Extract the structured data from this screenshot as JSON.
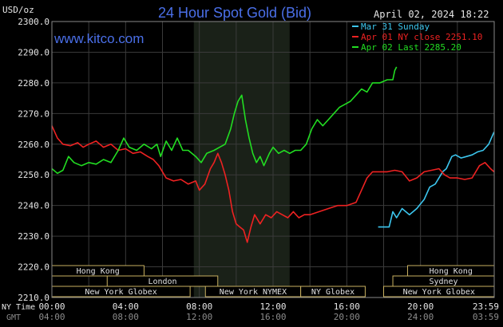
{
  "header": {
    "title": "24 Hour Spot Gold (Bid)",
    "y_unit": "USD/oz",
    "date": "April 02, 2024 18:22",
    "website": "www.kitco.com"
  },
  "legend": [
    {
      "label": "Mar 31 Sunday",
      "color": "#3cc6ee"
    },
    {
      "label": "Apr 01 NY close 2251.10",
      "color": "#ee2222"
    },
    {
      "label": "Apr 02 Last 2285.20",
      "color": "#22dd22"
    }
  ],
  "footer": {
    "ny_label": "NY Time",
    "gmt_label": "GMT"
  },
  "markets": {
    "left": [
      {
        "name": "Hong Kong",
        "row": 1,
        "start_h": 0,
        "end_h": 5.0
      },
      {
        "name": "London",
        "row": 2,
        "start_h": 3.0,
        "end_h": 9.0
      },
      {
        "name": "New York Globex",
        "row": 3,
        "start_h": 0,
        "end_h": 7.5
      }
    ],
    "bottom": [
      {
        "name": "New York NYMEX",
        "start_h": 8.33,
        "end_h": 13.5
      },
      {
        "name": "NY Globex",
        "start_h": 13.5,
        "end_h": 17.0
      }
    ],
    "right": [
      {
        "name": "Hong Kong",
        "row": 1,
        "start_h": 19.3,
        "end_h": 24
      },
      {
        "name": "Sydney",
        "row": 2,
        "start_h": 18.5,
        "end_h": 24
      },
      {
        "name": "New York Globex",
        "row": 3,
        "start_h": 18.0,
        "end_h": 24
      }
    ]
  },
  "colors": {
    "background": "#000000",
    "plot_background": "#000000",
    "grid": "#3a3a3a",
    "nymex_shade": "#1a2118",
    "title": "#4a6fe8",
    "text": "#e6e6e6",
    "market_fill": "#000000",
    "market_border": "#c8b060",
    "market_text": "#e0e0e0",
    "gmt_text": "#8c8c8c"
  },
  "chart_data": {
    "type": "line",
    "ylim": [
      2210,
      2300
    ],
    "yticks": [
      "2300.0",
      "2290.0",
      "2280.0",
      "2270.0",
      "2260.0",
      "2250.0",
      "2240.0",
      "2230.0",
      "2220.0",
      "2210.0"
    ],
    "xlim_hours": [
      0,
      24
    ],
    "xticks_ny": [
      "00:00",
      "04:00",
      "08:00",
      "12:00",
      "16:00",
      "20:00",
      "23:59"
    ],
    "xticks_gmt": [
      "04:00",
      "08:00",
      "12:00",
      "16:00",
      "20:00",
      "24:00",
      "03:59"
    ],
    "shaded_region_hours": [
      7.7,
      12.9
    ],
    "series": [
      {
        "name": "Mar 31 Sunday",
        "color": "#3cc6ee",
        "points": [
          [
            17.7,
            2233.0
          ],
          [
            18.3,
            2233.0
          ],
          [
            18.5,
            2238
          ],
          [
            18.7,
            2236
          ],
          [
            19.0,
            2239
          ],
          [
            19.4,
            2237
          ],
          [
            19.8,
            2239
          ],
          [
            20.2,
            2242
          ],
          [
            20.5,
            2246
          ],
          [
            20.8,
            2247
          ],
          [
            21.0,
            2249
          ],
          [
            21.2,
            2251
          ],
          [
            21.4,
            2252
          ],
          [
            21.7,
            2256
          ],
          [
            21.9,
            2256.5
          ],
          [
            22.2,
            2255.5
          ],
          [
            22.5,
            2256
          ],
          [
            22.8,
            2256.5
          ],
          [
            23.1,
            2257.5
          ],
          [
            23.4,
            2258
          ],
          [
            23.7,
            2260
          ],
          [
            23.99,
            2264
          ]
        ]
      },
      {
        "name": "Apr 01 NY close 2251.10",
        "color": "#ee2222",
        "points": [
          [
            0,
            2266
          ],
          [
            0.3,
            2262
          ],
          [
            0.6,
            2260
          ],
          [
            1.0,
            2259.5
          ],
          [
            1.4,
            2260.5
          ],
          [
            1.7,
            2259
          ],
          [
            2.0,
            2260
          ],
          [
            2.4,
            2261
          ],
          [
            2.8,
            2259
          ],
          [
            3.2,
            2260
          ],
          [
            3.6,
            2258
          ],
          [
            4.0,
            2258.5
          ],
          [
            4.4,
            2257
          ],
          [
            4.8,
            2257.5
          ],
          [
            5.2,
            2256
          ],
          [
            5.5,
            2255
          ],
          [
            5.8,
            2253
          ],
          [
            6.2,
            2249
          ],
          [
            6.6,
            2248
          ],
          [
            7.0,
            2248.5
          ],
          [
            7.4,
            2247
          ],
          [
            7.8,
            2248
          ],
          [
            8.0,
            2245
          ],
          [
            8.3,
            2247
          ],
          [
            8.6,
            2252
          ],
          [
            8.8,
            2254
          ],
          [
            9.0,
            2257
          ],
          [
            9.2,
            2254
          ],
          [
            9.4,
            2250
          ],
          [
            9.6,
            2245
          ],
          [
            9.8,
            2238
          ],
          [
            10.0,
            2234
          ],
          [
            10.2,
            2233
          ],
          [
            10.4,
            2232
          ],
          [
            10.6,
            2228
          ],
          [
            10.8,
            2233
          ],
          [
            11.0,
            2237
          ],
          [
            11.3,
            2234
          ],
          [
            11.6,
            2237
          ],
          [
            11.9,
            2236
          ],
          [
            12.2,
            2238
          ],
          [
            12.5,
            2237
          ],
          [
            12.8,
            2236
          ],
          [
            13.1,
            2238
          ],
          [
            13.4,
            2236
          ],
          [
            13.7,
            2237
          ],
          [
            14.0,
            2237
          ],
          [
            14.5,
            2238
          ],
          [
            15.0,
            2239
          ],
          [
            15.5,
            2240
          ],
          [
            16.0,
            2240
          ],
          [
            16.5,
            2241
          ],
          [
            16.8,
            2245
          ],
          [
            17.1,
            2249
          ],
          [
            17.4,
            2251
          ],
          [
            17.8,
            2251
          ],
          [
            18.2,
            2251
          ],
          [
            18.6,
            2251.5
          ],
          [
            19.0,
            2251
          ],
          [
            19.4,
            2248
          ],
          [
            19.8,
            2249
          ],
          [
            20.2,
            2251
          ],
          [
            20.6,
            2251.5
          ],
          [
            21.0,
            2252
          ],
          [
            21.3,
            2250
          ],
          [
            21.6,
            2249
          ],
          [
            22.0,
            2249
          ],
          [
            22.4,
            2248.5
          ],
          [
            22.8,
            2249
          ],
          [
            23.2,
            2253
          ],
          [
            23.5,
            2254
          ],
          [
            23.8,
            2252
          ],
          [
            23.99,
            2251
          ]
        ]
      },
      {
        "name": "Apr 02 Last 2285.20",
        "color": "#22dd22",
        "points": [
          [
            0,
            2252
          ],
          [
            0.3,
            2250.5
          ],
          [
            0.6,
            2251.5
          ],
          [
            0.9,
            2256
          ],
          [
            1.2,
            2254
          ],
          [
            1.6,
            2253
          ],
          [
            2.0,
            2254
          ],
          [
            2.4,
            2253.5
          ],
          [
            2.8,
            2255
          ],
          [
            3.2,
            2254
          ],
          [
            3.6,
            2258
          ],
          [
            3.9,
            2262
          ],
          [
            4.2,
            2259
          ],
          [
            4.6,
            2258
          ],
          [
            5.0,
            2260
          ],
          [
            5.4,
            2258.5
          ],
          [
            5.7,
            2260
          ],
          [
            5.9,
            2256
          ],
          [
            6.2,
            2261
          ],
          [
            6.5,
            2258
          ],
          [
            6.8,
            2262
          ],
          [
            7.1,
            2258
          ],
          [
            7.4,
            2258
          ],
          [
            7.8,
            2256
          ],
          [
            8.1,
            2254
          ],
          [
            8.4,
            2257
          ],
          [
            8.8,
            2258
          ],
          [
            9.1,
            2259
          ],
          [
            9.4,
            2260
          ],
          [
            9.7,
            2265
          ],
          [
            9.9,
            2270
          ],
          [
            10.1,
            2274
          ],
          [
            10.3,
            2276
          ],
          [
            10.5,
            2268
          ],
          [
            10.7,
            2262
          ],
          [
            10.9,
            2257
          ],
          [
            11.1,
            2254
          ],
          [
            11.3,
            2256
          ],
          [
            11.5,
            2253
          ],
          [
            11.8,
            2257
          ],
          [
            12.0,
            2259
          ],
          [
            12.3,
            2257
          ],
          [
            12.6,
            2258
          ],
          [
            12.9,
            2257
          ],
          [
            13.2,
            2258
          ],
          [
            13.5,
            2258
          ],
          [
            13.8,
            2260
          ],
          [
            14.1,
            2265
          ],
          [
            14.4,
            2268
          ],
          [
            14.7,
            2266
          ],
          [
            15.0,
            2268
          ],
          [
            15.3,
            2270
          ],
          [
            15.6,
            2272
          ],
          [
            15.9,
            2273
          ],
          [
            16.2,
            2274
          ],
          [
            16.5,
            2276
          ],
          [
            16.8,
            2278
          ],
          [
            17.1,
            2277
          ],
          [
            17.4,
            2280
          ],
          [
            17.8,
            2280
          ],
          [
            18.2,
            2281
          ],
          [
            18.5,
            2281
          ],
          [
            18.6,
            2284
          ],
          [
            18.7,
            2285.2
          ]
        ]
      }
    ]
  }
}
